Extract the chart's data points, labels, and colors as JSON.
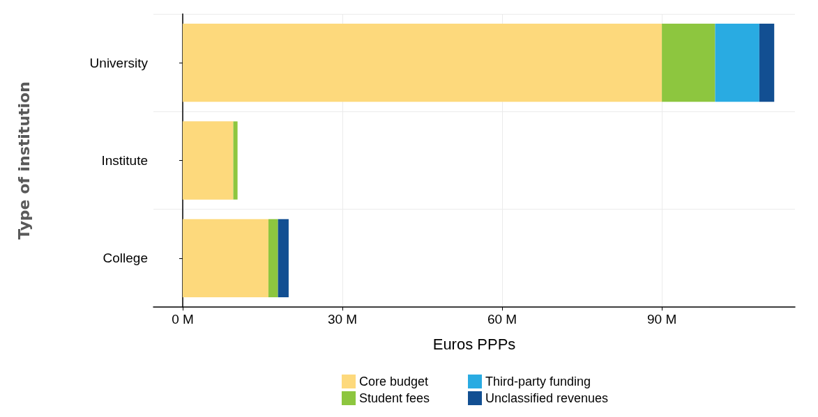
{
  "chart_data": {
    "type": "bar",
    "orientation": "horizontal",
    "stacked": true,
    "xlabel": "Euros PPPs",
    "ylabel": "Type of institution",
    "categories": [
      "University",
      "Institute",
      "College"
    ],
    "series": [
      {
        "name": "Core budget",
        "color": "#fdd97c",
        "values": [
          90,
          9.5,
          16.1
        ]
      },
      {
        "name": "Student fees",
        "color": "#8dc63f",
        "values": [
          10,
          0.8,
          1.8
        ]
      },
      {
        "name": "Third-party funding",
        "color": "#29abe2",
        "values": [
          8.3,
          null,
          null
        ]
      },
      {
        "name": "Unclassified revenues",
        "color": "#124f92",
        "values": [
          2.8,
          null,
          2
        ]
      }
    ],
    "xlim": [
      -5.5,
      115
    ],
    "xticks": [
      {
        "value": 0,
        "label": "0 M"
      },
      {
        "value": 30,
        "label": "30 M"
      },
      {
        "value": 60,
        "label": "60 M"
      },
      {
        "value": 90,
        "label": "90 M"
      }
    ],
    "grid": true,
    "legend": "bottom"
  }
}
